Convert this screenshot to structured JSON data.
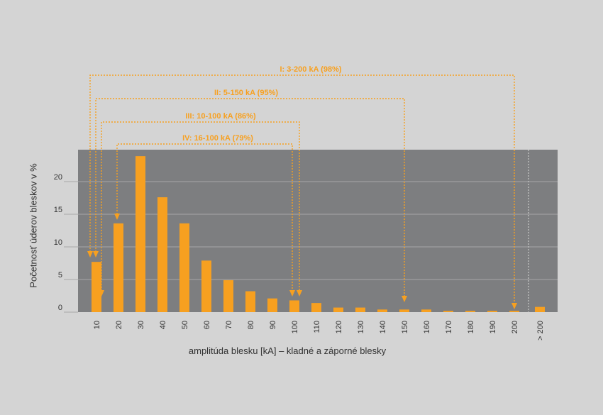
{
  "chart_data": {
    "type": "bar",
    "xlabel": "amplitúda blesku [kA] – kladné a záporné blesky",
    "ylabel": "Početnosť úderov bleskov v %",
    "ylim": [
      0,
      25
    ],
    "yticks": [
      0,
      5,
      10,
      15,
      20
    ],
    "grid": true,
    "categories": [
      "10",
      "20",
      "30",
      "40",
      "50",
      "60",
      "70",
      "80",
      "90",
      "100",
      "110",
      "120",
      "130",
      "140",
      "150",
      "160",
      "170",
      "180",
      "190",
      "200",
      "> 200"
    ],
    "values": [
      7.7,
      13.6,
      23.9,
      17.6,
      13.6,
      7.9,
      4.9,
      3.2,
      2.1,
      1.8,
      1.4,
      0.7,
      0.7,
      0.4,
      0.4,
      0.4,
      0.2,
      0.2,
      0.2,
      0.2,
      0.8
    ],
    "colors": {
      "bar": "#f7a020",
      "plot_bg": "#7d7e80",
      "page_bg": "#d4d4d4",
      "annotation": "#f7a020",
      "grid": "#b4b5b7",
      "text": "#333333"
    },
    "ranges": [
      {
        "label": "I: 3-200 kA (98%)",
        "from": 3,
        "to": 200
      },
      {
        "label": "II: 5-150 kA (95%)",
        "from": 5,
        "to": 150
      },
      {
        "label": "III: 10-100 kA (86%)",
        "from": 10,
        "to": 100
      },
      {
        "label": "IV: 16-100 kA (79%)",
        "from": 16,
        "to": 100
      }
    ]
  }
}
